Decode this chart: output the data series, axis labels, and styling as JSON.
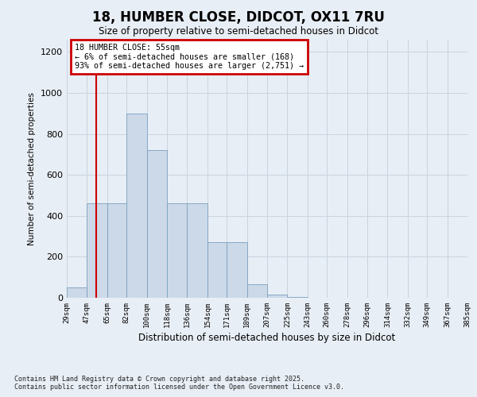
{
  "title": "18, HUMBER CLOSE, DIDCOT, OX11 7RU",
  "subtitle": "Size of property relative to semi-detached houses in Didcot",
  "xlabel": "Distribution of semi-detached houses by size in Didcot",
  "ylabel": "Number of semi-detached properties",
  "footnote": "Contains HM Land Registry data © Crown copyright and database right 2025.\nContains public sector information licensed under the Open Government Licence v3.0.",
  "bar_color": "#ccd9e8",
  "bar_edge_color": "#7aa0c0",
  "grid_color": "#c8d4e0",
  "background_color": "#e8eef5",
  "plot_bg_color": "#e8eef5",
  "annotation_box_color": "#ffffff",
  "annotation_border_color": "#cc0000",
  "red_line_color": "#cc0000",
  "red_line_x": 55,
  "annotation_title": "18 HUMBER CLOSE: 55sqm",
  "annotation_line1": "← 6% of semi-detached houses are smaller (168)",
  "annotation_line2": "93% of semi-detached houses are larger (2,751) →",
  "bins": [
    29,
    47,
    65,
    82,
    100,
    118,
    136,
    154,
    171,
    189,
    207,
    225,
    243,
    260,
    278,
    296,
    314,
    332,
    349,
    367,
    385
  ],
  "bin_labels": [
    "29sqm",
    "47sqm",
    "65sqm",
    "82sqm",
    "100sqm",
    "118sqm",
    "136sqm",
    "154sqm",
    "171sqm",
    "189sqm",
    "207sqm",
    "225sqm",
    "243sqm",
    "260sqm",
    "278sqm",
    "296sqm",
    "314sqm",
    "332sqm",
    "349sqm",
    "367sqm",
    "385sqm"
  ],
  "values": [
    50,
    460,
    460,
    900,
    720,
    460,
    460,
    270,
    270,
    65,
    15,
    5,
    0,
    0,
    0,
    0,
    0,
    0,
    0,
    0
  ],
  "ylim": [
    0,
    1260
  ],
  "yticks": [
    0,
    200,
    400,
    600,
    800,
    1000,
    1200
  ]
}
